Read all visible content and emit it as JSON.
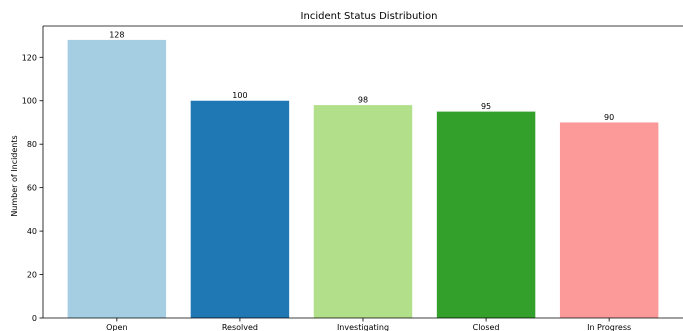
{
  "chart_data": {
    "type": "bar",
    "title": "Incident Status Distribution",
    "xlabel": "",
    "ylabel": "Number of Incidents",
    "categories": [
      "Open",
      "Resolved",
      "Investigating",
      "Closed",
      "In Progress"
    ],
    "values": [
      128,
      100,
      98,
      95,
      90
    ],
    "value_labels": [
      "128",
      "100",
      "98",
      "95",
      "90"
    ],
    "colors": [
      "#a6cee3",
      "#1f78b4",
      "#b2df8a",
      "#33a02c",
      "#fb9a99"
    ],
    "ylim": [
      0,
      134.4
    ],
    "yticks": [
      0,
      20,
      40,
      60,
      80,
      100,
      120
    ],
    "grid": false,
    "legend": "none"
  }
}
